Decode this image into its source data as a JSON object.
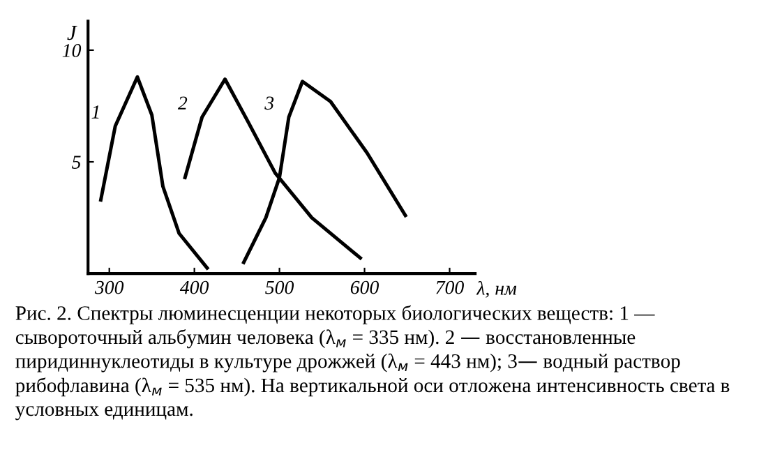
{
  "chart_data": {
    "type": "line",
    "ylabel": "J",
    "xlabel": "λ, нм",
    "xlim": [
      275,
      730
    ],
    "ylim": [
      0,
      11.3
    ],
    "xticks": [
      300,
      400,
      500,
      600,
      700
    ],
    "yticks": [
      5,
      10
    ],
    "grid": false,
    "legend": false,
    "marker": "none",
    "line_style": "solid",
    "series": [
      {
        "name": "1",
        "color": "#000000",
        "x": [
          290,
          307,
          333,
          350,
          363,
          382,
          415
        ],
        "values": [
          3.3,
          6.6,
          8.8,
          7.1,
          3.9,
          1.8,
          0.25
        ]
      },
      {
        "name": "2",
        "color": "#000000",
        "x": [
          389,
          409,
          436,
          463,
          495,
          538,
          595
        ],
        "values": [
          4.3,
          7.0,
          8.7,
          6.8,
          4.5,
          2.5,
          0.7
        ]
      },
      {
        "name": "3",
        "color": "#000000",
        "x": [
          458,
          484,
          500,
          511,
          527,
          560,
          603,
          648
        ],
        "values": [
          0.5,
          2.5,
          4.3,
          7.0,
          8.6,
          7.7,
          5.4,
          2.6
        ]
      }
    ],
    "annotations": [
      "Рис. 2. Спектры люминесценции некоторых биологических веществ: 1 — сывороточный альбумин человека (λ$_{м}$ = 335 нм). 2 — восстановленные пиридиннуклеотиды в культуре дрожжей (λ$_{м}$ = 443 нм); 3— водный раствор рибофлавина (λ$_{м}$ = 535 нм). На вертикальной оси отложена интенсивность света в условных единицам."
    ]
  }
}
